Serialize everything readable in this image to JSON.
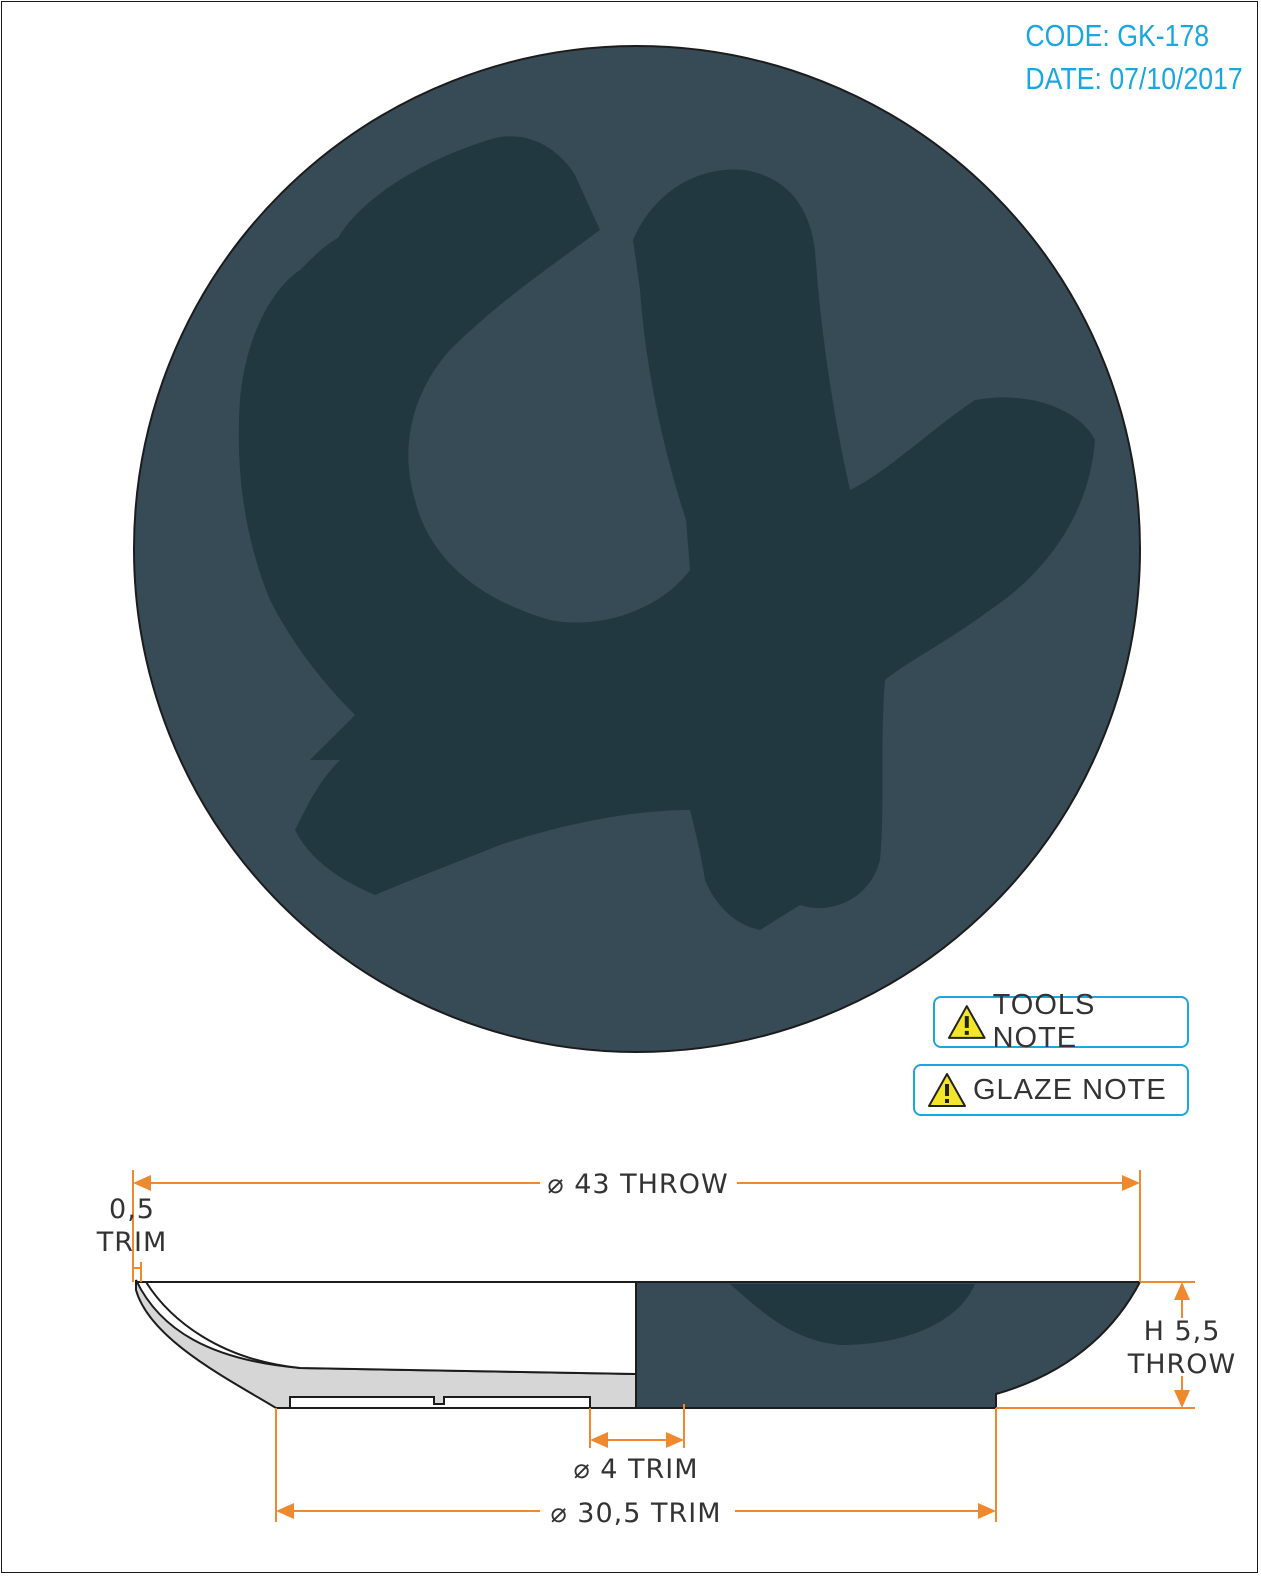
{
  "header": {
    "code_text": "CODE: GK-178",
    "date_text": "DATE: 07/10/2017"
  },
  "notes": {
    "tools_label": "TOOLS NOTE",
    "glaze_label": "GLAZE NOTE"
  },
  "dimensions": {
    "outer_diameter": "⌀ 43 THROW",
    "rim_trim_value": "0,5",
    "rim_trim_label": "TRIM",
    "height_value": "H 5,5",
    "height_label": "THROW",
    "inner_foot": "⌀ 4 TRIM",
    "foot_diameter": "⌀ 30,5 TRIM"
  },
  "colors": {
    "accent_cyan": "#1aa6df",
    "dimension_orange": "#f0892d",
    "glaze_slate": "#374b56",
    "brush_dark": "#223840",
    "warning_yellow": "#f2e52a"
  },
  "icons": {
    "note_icon": "warning-triangle-icon"
  }
}
